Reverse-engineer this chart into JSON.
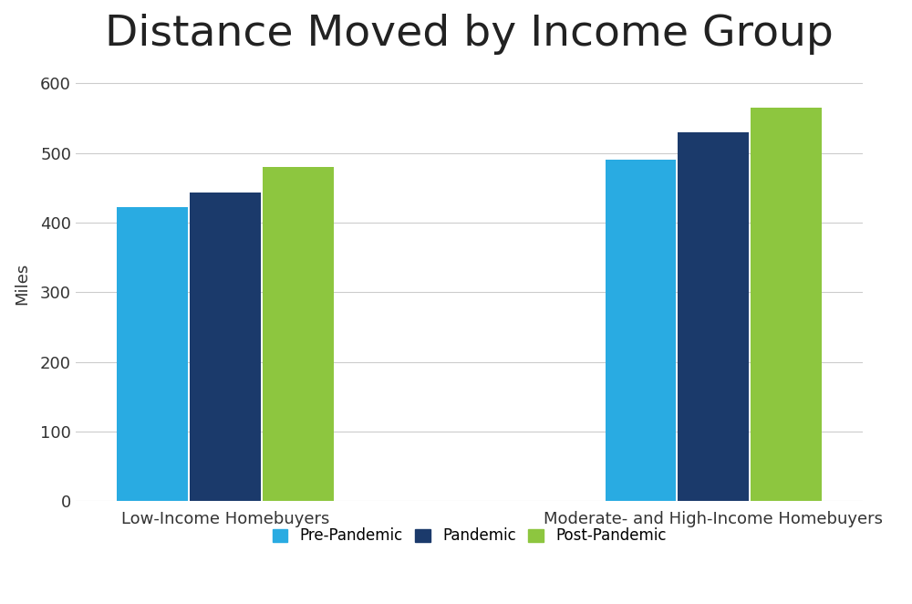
{
  "title": "Distance Moved by Income Group",
  "ylabel": "Miles",
  "categories": [
    "Low-Income Homebuyers",
    "Moderate- and High-Income Homebuyers"
  ],
  "series": {
    "Pre-Pandemic": [
      422,
      490
    ],
    "Pandemic": [
      443,
      530
    ],
    "Post-Pandemic": [
      480,
      565
    ]
  },
  "colors": {
    "Pre-Pandemic": "#29ABE2",
    "Pandemic": "#1B3A6B",
    "Post-Pandemic": "#8DC63F"
  },
  "ylim": [
    0,
    625
  ],
  "yticks": [
    0,
    100,
    200,
    300,
    400,
    500,
    600
  ],
  "background_color": "#FFFFFF",
  "grid_color": "#CCCCCC",
  "title_fontsize": 34,
  "title_fontweight": "normal",
  "axis_label_fontsize": 13,
  "tick_fontsize": 13,
  "legend_fontsize": 12,
  "bar_width": 0.18,
  "bar_spacing": 0.005,
  "group_positions": [
    0.38,
    1.62
  ],
  "xlim": [
    0.0,
    2.0
  ]
}
